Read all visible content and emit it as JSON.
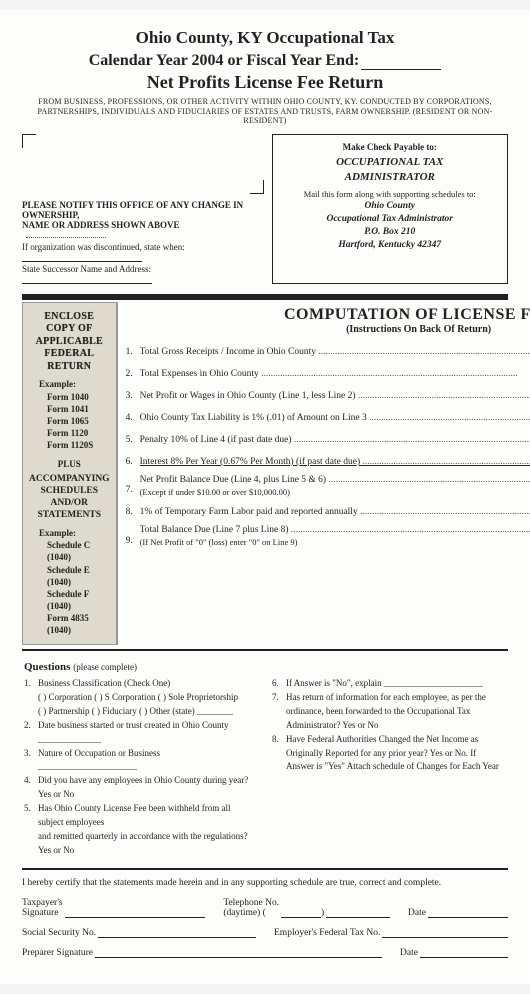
{
  "header": {
    "line1": "Ohio County, KY Occupational Tax",
    "line2_pre": "Calendar Year 2004 or Fiscal Year End:",
    "line3": "Net Profits License Fee Return",
    "subtext": "FROM BUSINESS, PROFESSIONS, OR OTHER ACTIVITY WITHIN OHIO COUNTY, KY. CONDUCTED BY CORPORATIONS, PARTNERSHIPS, INDIVIDUALS AND FIDUCIARIES OF ESTATES AND TRUSTS, FARM OWNERSHIP. (RESIDENT OR NON-RESIDENT)"
  },
  "notify": {
    "l1": "PLEASE NOTIFY THIS OFFICE OF ANY CHANGE IN OWNERSHIP,",
    "l2": "NAME OR ADDRESS SHOWN ABOVE",
    "l3": "If organization was discontinued, state when:",
    "l4": "State Successor Name and Address:"
  },
  "mailbox": {
    "t1": "Make Check Payable to:",
    "em1": "OCCUPATIONAL TAX",
    "em2": "ADMINISTRATOR",
    "t2": "Mail this form along with supporting schedules to:",
    "a1": "Ohio County",
    "a2": "Occupational Tax Administrator",
    "a3": "P.O. Box 210",
    "a4": "Hartford, Kentucky 42347"
  },
  "enclose": {
    "h1": "ENCLOSE COPY OF",
    "h2": "APPLICABLE",
    "h3": "FEDERAL RETURN",
    "ex": "Example:",
    "forms": [
      "Form 1040",
      "Form 1041",
      "Form 1065",
      "Form 1120",
      "Form 1120S"
    ],
    "plus": "PLUS",
    "acc1": "ACCOMPANYING",
    "acc2": "SCHEDULES",
    "acc3": "AND/OR",
    "acc4": "STATEMENTS",
    "ex2": "Example:",
    "sch": [
      "Schedule C (1040)",
      "Schedule E (1040)",
      "Schedule F (1040)",
      "Form 4835 (1040)"
    ]
  },
  "comp": {
    "title": "COMPUTATION OF LICENSE FEE",
    "sub": "(Instructions On Back Of Return)",
    "rows": [
      {
        "n": "1.",
        "label": "Total Gross Receipts / Income in Ohio County",
        "box": "1"
      },
      {
        "n": "2.",
        "label": "Total Expenses in Ohio County",
        "box": "2"
      },
      {
        "n": "3.",
        "label": "Net Profit or Wages in Ohio County (Line 1, less Line 2)",
        "box": "3"
      },
      {
        "n": "4.",
        "label": "Ohio County Tax Liability is 1% (.01) of Amount on Line 3",
        "box": "4"
      },
      {
        "n": "5.",
        "label": "Penalty 10% of Line 4 (if past date due)",
        "box": "5"
      },
      {
        "n": "6.",
        "label": "Interest 8% Per Year (0.67% Per Month) (if past date due)",
        "box": "6",
        "u": true
      },
      {
        "n": "7.",
        "label": "Net Profit Balance Due (Line 4, plus Line 5 & 6)",
        "sub": "(Except if under $10.00 or over $10,000.00)",
        "box": "7"
      },
      {
        "n": "8.",
        "label": "1% of Temporary Farm Labor paid and reported annually",
        "box": "8"
      },
      {
        "n": "9.",
        "label": "Total Balance Due (Line 7 plus Line 8)",
        "sub": "(If Net Profit of \"0\" (loss) enter \"0\" on Line 9)",
        "box": "9"
      }
    ]
  },
  "questions": {
    "title": "Questions",
    "pc": "(please complete)",
    "left": [
      {
        "n": "1.",
        "t": "Business Classification (Check One)"
      },
      {
        "n": "",
        "t": "( ) Corporation   ( ) S Corporation   ( ) Sole Proprietorship"
      },
      {
        "n": "",
        "t": "( ) Partnership   ( ) Fiduciary   ( ) Other (state) ________"
      },
      {
        "n": "2.",
        "t": "Date business started or trust created in Ohio County ______________"
      },
      {
        "n": "3.",
        "t": "Nature of Occupation or Business ______________________"
      },
      {
        "n": "4.",
        "t": "Did you have any employees in Ohio County during year?  Yes or No"
      },
      {
        "n": "5.",
        "t": "Has Ohio County License Fee been withheld from all subject employees"
      },
      {
        "n": "",
        "t": "and remitted quarterly in accordance with the regulations?  Yes or No"
      }
    ],
    "right": [
      {
        "n": "6.",
        "t": "If Answer is \"No\", explain ______________________"
      },
      {
        "n": "7.",
        "t": "Has return of information for each employee, as per the"
      },
      {
        "n": "",
        "t": "ordinance, been forwarded to the Occupational Tax"
      },
      {
        "n": "",
        "t": "Administrator?  Yes or No"
      },
      {
        "n": "8.",
        "t": "Have Federal Authorities Changed the Net Income as"
      },
      {
        "n": "",
        "t": "Originally Reported for any prior year?  Yes or No.  If"
      },
      {
        "n": "",
        "t": "Answer is \"Yes\" Attach schedule of Changes for Each Year"
      }
    ]
  },
  "cert": "I hereby certify that the statements made herein and in any supporting schedule are true, correct and complete.",
  "sig": {
    "taxpayer": "Taxpayer's",
    "signature": "Signature",
    "telephone": "Telephone No.",
    "daytime": "(daytime) (",
    "date": "Date",
    "ssn": "Social Security No.",
    "ein": "Employer's Federal Tax No.",
    "preparer": "Preparer Signature",
    "date2": "Date"
  }
}
